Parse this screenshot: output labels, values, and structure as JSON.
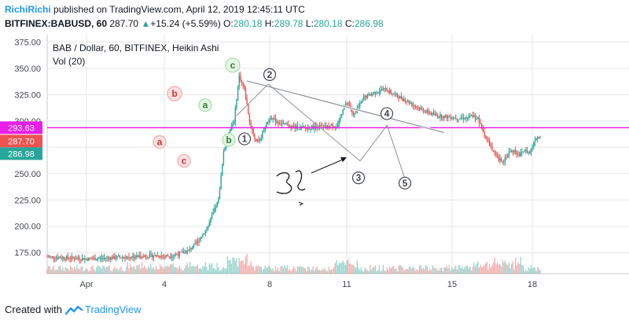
{
  "header": {
    "user": "RichiRichi",
    "published": " published on TradingView.com, April 12, 2019 12:45:11 UTC",
    "symbol": "BITFINEX:BABUSD, 60",
    "last": "287.70",
    "change_arrow": "▲",
    "change": "+15.24 (+5.59%)",
    "o_label": "O:",
    "o_val": "280.18",
    "h_label": "H:",
    "h_val": "289.78",
    "l_label": "L:",
    "l_val": "280.18",
    "c_label": "C:",
    "c_val": "286.98"
  },
  "legend": {
    "title": "BAB / Dollar, 60, BITFINEX, Heikin Ashi",
    "volume": "Vol (20)"
  },
  "footer": {
    "created_with": "Created with",
    "brand": "TradingView"
  },
  "colors": {
    "up": "#26a69a",
    "down": "#ef5350",
    "level_line": "#e91ee9",
    "grid": "#e6e6e6",
    "axis_text": "#434651"
  },
  "chart_data": {
    "type": "candlestick",
    "y_ticks": [
      "375.00",
      "350.00",
      "325.00",
      "300.00",
      "275.00",
      "250.00",
      "225.00",
      "200.00",
      "175.00"
    ],
    "ylim": [
      155,
      382
    ],
    "x_ticks": [
      "Apr",
      "4",
      "8",
      "11",
      "15",
      "18"
    ],
    "price_labels": [
      {
        "value": 293.63,
        "text": "293.63",
        "color": "#e91ee9"
      },
      {
        "value": 287.7,
        "text": "287.70",
        "color": "#ef5350"
      },
      {
        "value": 286.98,
        "text": "286.98",
        "color": "#26a69a"
      }
    ],
    "horizontal_line": 293.63,
    "wave_labels_circled_red": [
      "a",
      "b",
      "c"
    ],
    "wave_labels_circled_green": [
      "a",
      "b",
      "c"
    ],
    "wave_labels_numbered": [
      "1",
      "2",
      "3",
      "4",
      "5"
    ],
    "price_path": [
      [
        0,
        171
      ],
      [
        4,
        170
      ],
      [
        8,
        169
      ],
      [
        12,
        170
      ],
      [
        16,
        171
      ],
      [
        20,
        172
      ],
      [
        24,
        172
      ],
      [
        27,
        176
      ],
      [
        29,
        185
      ],
      [
        31,
        200
      ],
      [
        33,
        225
      ],
      [
        34,
        270
      ],
      [
        35,
        290
      ],
      [
        36,
        300
      ],
      [
        37,
        343
      ],
      [
        38,
        330
      ],
      [
        39,
        300
      ],
      [
        40,
        283
      ],
      [
        41,
        282
      ],
      [
        42,
        295
      ],
      [
        43,
        304
      ],
      [
        44,
        300
      ],
      [
        46,
        296
      ],
      [
        48,
        294
      ],
      [
        50,
        293
      ],
      [
        52,
        295
      ],
      [
        54,
        294
      ],
      [
        55,
        296
      ],
      [
        56,
        295
      ],
      [
        57,
        312
      ],
      [
        58,
        318
      ],
      [
        59,
        305
      ],
      [
        60,
        313
      ],
      [
        61,
        322
      ],
      [
        63,
        327
      ],
      [
        65,
        330
      ],
      [
        67,
        325
      ],
      [
        69,
        320
      ],
      [
        71,
        314
      ],
      [
        73,
        309
      ],
      [
        75,
        305
      ],
      [
        77,
        304
      ],
      [
        79,
        303
      ],
      [
        81,
        303
      ],
      [
        82,
        305
      ],
      [
        83,
        302
      ],
      [
        84,
        290
      ],
      [
        85,
        280
      ],
      [
        86,
        270
      ],
      [
        87,
        263
      ],
      [
        88,
        263
      ],
      [
        89,
        270
      ],
      [
        90,
        272
      ],
      [
        91,
        268
      ],
      [
        92,
        272
      ],
      [
        93,
        270
      ],
      [
        94,
        283
      ],
      [
        95,
        287
      ]
    ]
  }
}
